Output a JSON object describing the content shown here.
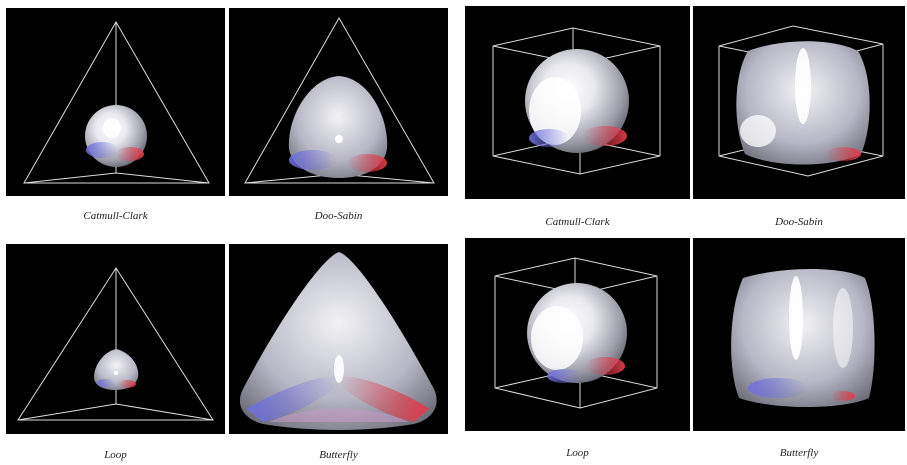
{
  "figure": {
    "left_group": {
      "top_captions": [
        "Catmull-Clark",
        "Doo-Sabin"
      ],
      "bottom_captions": [
        "Loop",
        "Butterfly"
      ],
      "control_mesh": "tetrahedron"
    },
    "right_group": {
      "top_captions": [
        "Catmull-Clark",
        "Doo-Sabin"
      ],
      "bottom_captions": [
        "Loop",
        "Butterfly"
      ],
      "control_mesh": "cube"
    },
    "colors": {
      "background": "#000000",
      "surface": "#c9c9d6",
      "highlight": "#ffffff",
      "blue_tint": "#6f6fe0",
      "red_tint": "#e23a4a",
      "wireframe": "#dcdcdc"
    }
  }
}
